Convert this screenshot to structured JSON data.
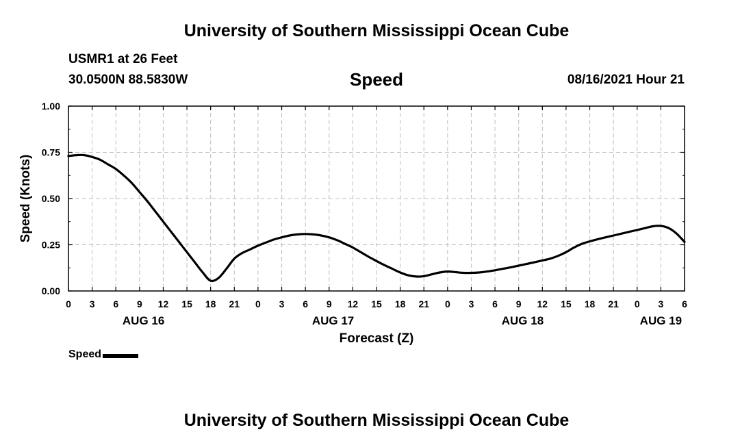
{
  "header": {
    "title": "University of Southern Mississippi Ocean Cube",
    "station": "USMR1 at 26 Feet",
    "coordinates": "30.0500N  88.5830W",
    "variable": "Speed",
    "datetime": "08/16/2021 Hour 21"
  },
  "legend": {
    "label": "Speed"
  },
  "footer": {
    "title": "University of Southern Mississippi Ocean Cube"
  },
  "chart_data": {
    "type": "line",
    "title": "Speed",
    "xlabel": "Forecast (Z)",
    "ylabel": "Speed (Knots)",
    "x_unit": "hours from AUG 16 00Z",
    "xlim": [
      0,
      78
    ],
    "ylim": [
      0,
      1
    ],
    "grid": true,
    "x_ticks": [
      0,
      3,
      6,
      9,
      12,
      15,
      18,
      21,
      24,
      27,
      30,
      33,
      36,
      39,
      42,
      45,
      48,
      51,
      54,
      57,
      60,
      63,
      66,
      69,
      72,
      75,
      78
    ],
    "x_tick_labels": [
      "0",
      "3",
      "6",
      "9",
      "12",
      "15",
      "18",
      "21",
      "0",
      "3",
      "6",
      "9",
      "12",
      "15",
      "18",
      "21",
      "0",
      "3",
      "6",
      "9",
      "12",
      "15",
      "18",
      "21",
      "0",
      "3",
      "6"
    ],
    "y_ticks": [
      0,
      0.25,
      0.5,
      0.75,
      1.0
    ],
    "y_tick_labels": [
      "0.00",
      "0.25",
      "0.50",
      "0.75",
      "1.00"
    ],
    "date_labels": [
      {
        "label": "AUG 16",
        "hour": 9.5
      },
      {
        "label": "AUG 17",
        "hour": 33.5
      },
      {
        "label": "AUG 18",
        "hour": 57.5
      },
      {
        "label": "AUG 19",
        "hour": 75
      }
    ],
    "series": [
      {
        "name": "Speed",
        "color": "#000000",
        "x": [
          0,
          1,
          2,
          3,
          4,
          5,
          6,
          7,
          8,
          9,
          10,
          11,
          12,
          13,
          14,
          15,
          16,
          17,
          18,
          19,
          20,
          21,
          22,
          23,
          24,
          25,
          26,
          27,
          28,
          29,
          30,
          31,
          32,
          33,
          34,
          35,
          36,
          37,
          38,
          39,
          40,
          41,
          42,
          43,
          44,
          45,
          46,
          47,
          48,
          49,
          50,
          51,
          52,
          53,
          54,
          55,
          56,
          57,
          58,
          59,
          60,
          61,
          62,
          63,
          64,
          65,
          66,
          67,
          68,
          69,
          70,
          71,
          72,
          73,
          74,
          75,
          76,
          77,
          78
        ],
        "values": [
          0.73,
          0.735,
          0.735,
          0.725,
          0.71,
          0.685,
          0.66,
          0.625,
          0.585,
          0.535,
          0.485,
          0.43,
          0.375,
          0.32,
          0.265,
          0.21,
          0.155,
          0.1,
          0.055,
          0.07,
          0.12,
          0.175,
          0.205,
          0.225,
          0.245,
          0.262,
          0.278,
          0.29,
          0.3,
          0.306,
          0.308,
          0.306,
          0.3,
          0.29,
          0.275,
          0.255,
          0.235,
          0.21,
          0.185,
          0.162,
          0.14,
          0.12,
          0.1,
          0.085,
          0.078,
          0.08,
          0.09,
          0.1,
          0.105,
          0.102,
          0.098,
          0.098,
          0.1,
          0.105,
          0.112,
          0.12,
          0.128,
          0.137,
          0.146,
          0.155,
          0.165,
          0.175,
          0.19,
          0.21,
          0.235,
          0.255,
          0.268,
          0.28,
          0.29,
          0.3,
          0.31,
          0.32,
          0.33,
          0.34,
          0.35,
          0.352,
          0.34,
          0.31,
          0.265
        ]
      }
    ]
  }
}
